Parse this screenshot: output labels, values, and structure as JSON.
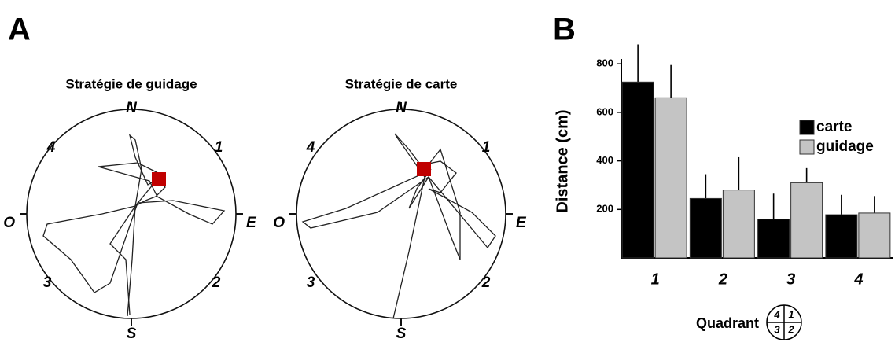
{
  "panel_labels": [
    "A",
    "B"
  ],
  "panel_a": {
    "maps": [
      {
        "title": "Stratégie de guidage",
        "compass": [
          "N",
          "S",
          "O",
          "E"
        ],
        "quadrants": [
          "4",
          "1",
          "3",
          "2"
        ]
      },
      {
        "title": "Stratégie de carte",
        "compass": [
          "N",
          "S",
          "O",
          "E"
        ],
        "quadrants": [
          "4",
          "1",
          "3",
          "2"
        ]
      }
    ]
  },
  "chart_data": {
    "type": "bar",
    "ylabel": "Distance (cm)",
    "xlabel": "Quadrant",
    "categories": [
      "1",
      "2",
      "3",
      "4"
    ],
    "series": [
      {
        "name": "carte",
        "color": "#000000",
        "values": [
          725,
          245,
          160,
          178
        ],
        "errors": [
          155,
          100,
          105,
          82
        ]
      },
      {
        "name": "guidage",
        "color": "#c4c4c4",
        "values": [
          660,
          280,
          310,
          185
        ],
        "errors": [
          135,
          135,
          60,
          70
        ]
      }
    ],
    "ylim": [
      0,
      820
    ],
    "yticks": [
      200,
      400,
      600,
      800
    ],
    "inset_labels": [
      "4",
      "1",
      "3",
      "2"
    ]
  }
}
